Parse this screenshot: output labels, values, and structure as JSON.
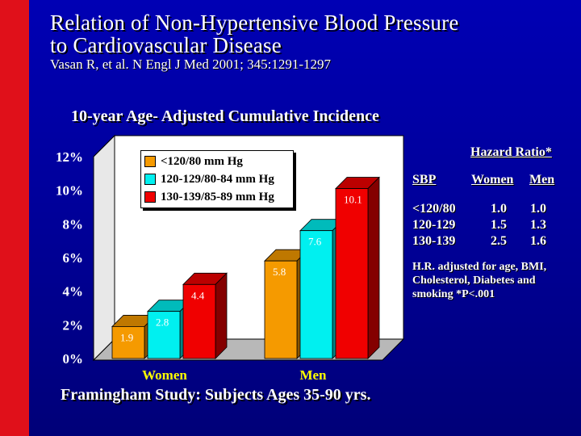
{
  "slide": {
    "title_line1": "Relation of Non-Hypertensive Blood  Pressure",
    "title_line2": "to Cardiovascular Disease",
    "citation": "Vasan R, et al. N Engl J Med 2001; 345:1291-1297",
    "subtitle": "10-year Age- Adjusted Cumulative Incidence",
    "footer": "Framingham Study: Subjects Ages 35-90 yrs."
  },
  "chart_data": {
    "type": "bar",
    "categories": [
      "Women",
      "Men"
    ],
    "series": [
      {
        "name": "<120/80 mm Hg",
        "values": [
          1.9,
          5.8
        ],
        "labels": [
          "1.9",
          "5.8"
        ],
        "color": "#f59a00"
      },
      {
        "name": "120-129/80-84 mm Hg",
        "values": [
          2.8,
          7.6
        ],
        "labels": [
          "2.8",
          "7.6"
        ],
        "color": "#00f0f0"
      },
      {
        "name": "130-139/85-89 mm Hg",
        "values": [
          4.4,
          10.1
        ],
        "labels": [
          "4.4",
          "10.1"
        ],
        "color": "#f00000"
      }
    ],
    "yticks": [
      "0%",
      "2%",
      "4%",
      "6%",
      "8%",
      "10%",
      "12%"
    ],
    "ylim": [
      0,
      12
    ],
    "grid": false,
    "three_d": true,
    "legend_position": "top-left"
  },
  "hazard_table": {
    "title": "Hazard Ratio*",
    "col_sbp": "SBP",
    "col_women": "Women",
    "col_men": "Men",
    "rows": [
      {
        "sbp": "<120/80",
        "women": "1.0",
        "men": "1.0"
      },
      {
        "sbp": "120-129",
        "women": "1.5",
        "men": "1.3"
      },
      {
        "sbp": "130-139",
        "women": "2.5",
        "men": "1.6"
      }
    ],
    "note": "H.R. adjusted for age, BMI, Cholesterol, Diabetes and smoking *P<.001"
  },
  "colors": {
    "background": "#0000a8",
    "accent_bar": "#e0101a",
    "chart_wall": "#ffffff",
    "floor": "#b8b8b8",
    "category_label": "#ffff00"
  }
}
